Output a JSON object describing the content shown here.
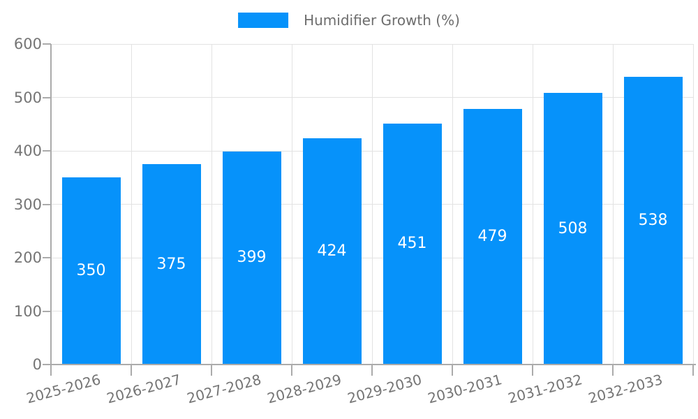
{
  "chart_data": {
    "type": "bar",
    "title": "",
    "legend": "Humidifier Growth (%)",
    "legend_position": "top-center",
    "categories": [
      "2025-2026",
      "2026-2027",
      "2027-2028",
      "2028-2029",
      "2029-2030",
      "2030-2031",
      "2031-2032",
      "2032-2033"
    ],
    "values": [
      350,
      375,
      399,
      424,
      451,
      479,
      508,
      538
    ],
    "xlabel": "",
    "ylabel": "",
    "ylim": [
      0,
      600
    ],
    "ytick_step": 100,
    "yticks": [
      0,
      100,
      200,
      300,
      400,
      500,
      600
    ],
    "grid": true,
    "value_labels_inside_bars": true,
    "colors": {
      "bar": "#0692fa",
      "value_label": "#ffffff",
      "axis_text": "#757575",
      "legend_text": "#6d6d6d",
      "gridline": "#e2e2e2",
      "axis_line": "#ababab"
    }
  }
}
